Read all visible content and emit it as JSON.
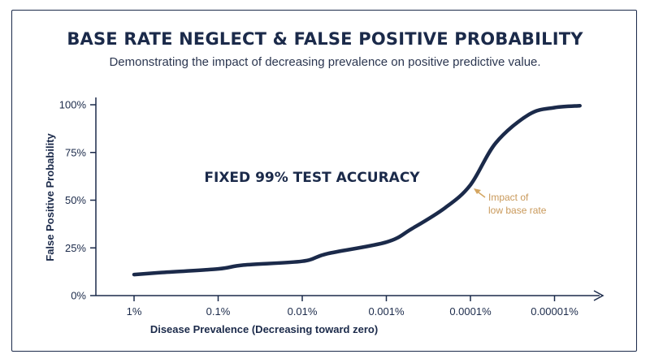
{
  "chart_data": {
    "type": "line",
    "title": "BASE RATE NEGLECT & FALSE POSITIVE PROBABILITY",
    "subtitle": "Demonstrating the impact of decreasing prevalence on positive predictive value.",
    "xlabel": "Disease Prevalence (Decreasing toward zero)",
    "ylabel": "False Positive Probability",
    "categories": [
      "1%",
      "0.1%",
      "0.01%",
      "0.001%",
      "0.0001%",
      "0.00001%"
    ],
    "x_prevalence_pct": [
      1,
      0.5,
      0.1,
      0.05,
      0.01,
      0.005,
      0.001,
      0.0005,
      0.0002,
      0.0001,
      5e-05,
      2e-05,
      1e-05,
      5e-06
    ],
    "y_pct": [
      11,
      12,
      14,
      16,
      18,
      22,
      28,
      35,
      46,
      58,
      80,
      95,
      98.5,
      99.5
    ],
    "y_ticks": [
      "0%",
      "25%",
      "50%",
      "75%",
      "100%"
    ],
    "ylim": [
      0,
      100
    ],
    "grid": false,
    "annotations": {
      "center_label": "FIXED 99% TEST ACCURACY",
      "arrow_label": [
        "Impact of",
        "low base rate"
      ]
    },
    "colors": {
      "line": "#1b2a4a",
      "axis": "#1b2a4a",
      "annotation": "#d4a560"
    }
  }
}
